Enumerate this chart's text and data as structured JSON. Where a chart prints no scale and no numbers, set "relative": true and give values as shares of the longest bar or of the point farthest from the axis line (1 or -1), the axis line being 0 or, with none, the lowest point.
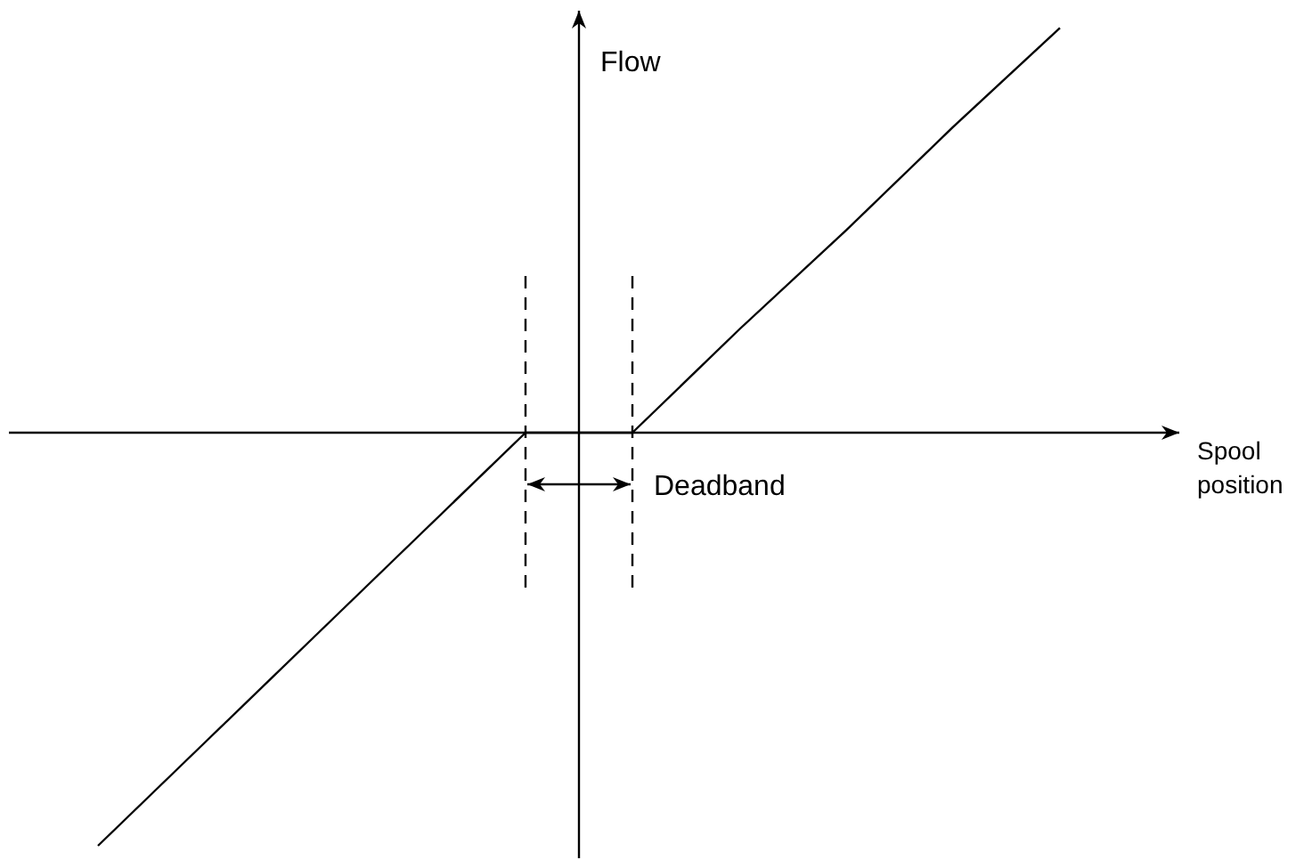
{
  "chart_data": {
    "type": "line",
    "relative": true,
    "xlabel": "Spool position",
    "ylabel": "Flow",
    "categories": [
      null,
      null,
      null,
      null,
      null,
      null,
      null,
      null,
      null,
      null
    ],
    "series": [
      {
        "color": "#000000",
        "values": [
          -1,
          -0.75,
          -0.5,
          -0.25,
          0,
          0,
          0.25,
          0.49,
          0.74,
          0.98
        ]
      }
    ],
    "marker": "none",
    "line_style": "solid",
    "annotations": [
      "Deadband"
    ]
  }
}
